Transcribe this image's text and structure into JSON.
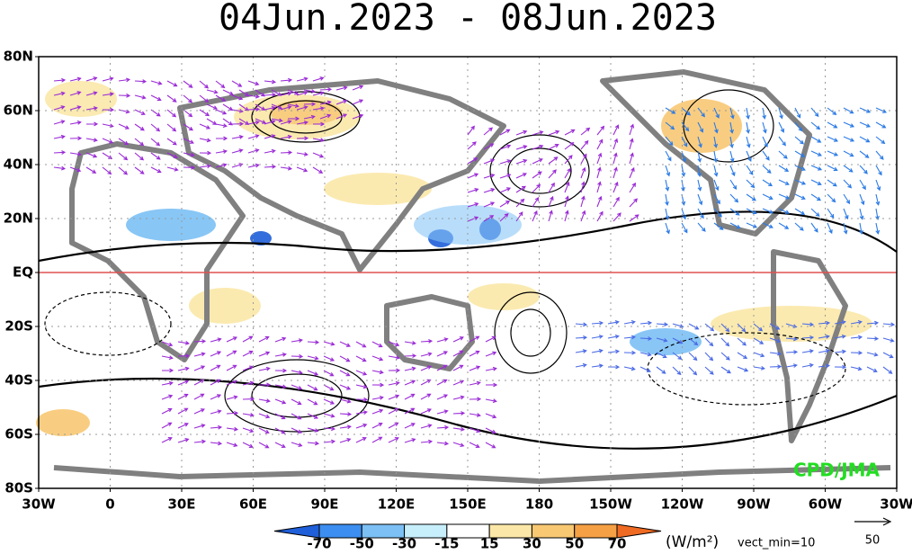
{
  "title": "04Jun.2023 - 08Jun.2023",
  "map": {
    "lat_labels": [
      "80N",
      "60N",
      "40N",
      "20N",
      "EQ",
      "20S",
      "40S",
      "60S",
      "80S"
    ],
    "lon_labels": [
      "30W",
      "0",
      "30E",
      "60E",
      "90E",
      "120E",
      "150E",
      "180",
      "150W",
      "120W",
      "90W",
      "60W",
      "30W"
    ],
    "credit": "CPD/JMA"
  },
  "colorbar": {
    "ticks": [
      -70,
      -50,
      -30,
      -15,
      15,
      30,
      50,
      70
    ],
    "colors": [
      "#1f5fd9",
      "#3c8ef0",
      "#7cc0f5",
      "#c7eefb",
      "#ffffff",
      "#fbe8a8",
      "#f8c873",
      "#f5a045",
      "#ef6a22"
    ],
    "unit": "(W/m²)",
    "vect_min": "vect_min=10"
  },
  "reference_vector": {
    "label": "50"
  }
}
